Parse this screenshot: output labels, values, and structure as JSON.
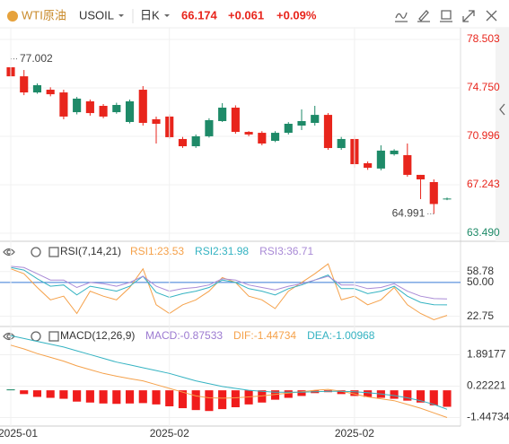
{
  "header": {
    "symbol_name": "WTI原油",
    "symbol_code": "USOIL",
    "period": "日K",
    "price": 66.174,
    "change": "+0.061",
    "change_pct": "+0.09%"
  },
  "chart_data": [
    {
      "type": "candlestick",
      "up_color": "#1e8a68",
      "down_color": "#e8251c",
      "mark_extremes": true,
      "ylim": [
        62.93,
        79.48
      ],
      "yticks": [
        78.503,
        {
          "value": 74.75,
          "label": "74.750"
        },
        70.996,
        67.243,
        {
          "value": 63.49,
          "label": "63.490"
        }
      ],
      "open": [
        76.35,
        75.65,
        74.4,
        74.61,
        74.4,
        72.87,
        73.71,
        73.36,
        72.87,
        72.11,
        74.61,
        72.32,
        72.53,
        70.79,
        70.23,
        71.0,
        72.18,
        73.22,
        71.34,
        71.27,
        70.65,
        71.27,
        71.83,
        72.04,
        72.66,
        70.09,
        70.79,
        68.91,
        68.5,
        69.61,
        69.54,
        68.01,
        67.45,
        66.11
      ],
      "high": [
        77.002,
        76.14,
        75.1,
        74.8,
        74.61,
        74.05,
        73.85,
        73.5,
        73.6,
        73.85,
        74.89,
        72.53,
        72.7,
        70.95,
        71.14,
        72.4,
        73.57,
        73.4,
        71.4,
        71.4,
        71.4,
        72.1,
        73.08,
        73.36,
        72.8,
        70.95,
        71.07,
        69.05,
        70.3,
        70.0,
        70.44,
        68.01,
        67.66,
        66.25
      ],
      "low": [
        75.45,
        74.19,
        74.3,
        74.1,
        72.32,
        72.7,
        72.6,
        72.4,
        72.75,
        72.0,
        71.83,
        70.44,
        70.8,
        70.1,
        70.1,
        70.9,
        72.11,
        71.2,
        71.0,
        70.3,
        70.55,
        71.14,
        71.48,
        71.83,
        69.95,
        69.95,
        68.56,
        68.4,
        68.36,
        69.5,
        67.87,
        66.13,
        64.991,
        66.05
      ],
      "close": [
        75.65,
        74.4,
        74.96,
        74.26,
        72.53,
        73.92,
        72.8,
        72.53,
        73.43,
        73.71,
        72.04,
        71.97,
        70.93,
        70.23,
        71.0,
        72.25,
        73.22,
        71.34,
        71.14,
        70.44,
        71.27,
        71.97,
        72.18,
        72.66,
        70.09,
        70.79,
        68.84,
        68.56,
        69.89,
        69.89,
        68.01,
        67.66,
        65.75,
        66.174
      ]
    },
    {
      "type": "line",
      "title": "RSI(7,14,21)",
      "ylim": [
        16,
        68
      ],
      "yticks": [
        58.78,
        {
          "value": 50,
          "label": "50.00"
        },
        22.75
      ],
      "reference_line": 50,
      "reference_color": "#3b7dd8",
      "series": [
        {
          "name": "RSI1:23.53",
          "color": "#f5a14a",
          "values": [
            61,
            57,
            46,
            36,
            39,
            25,
            43,
            39,
            36,
            46,
            61,
            32,
            25,
            32,
            36,
            43,
            54,
            50,
            39,
            36,
            29,
            43,
            50,
            57,
            65,
            36,
            39,
            32,
            36,
            46,
            32,
            25,
            20,
            23.53
          ]
        },
        {
          "name": "RSI2:31.98",
          "color": "#35b3c2",
          "values": [
            62,
            60,
            53,
            47,
            48,
            40,
            47,
            45,
            43,
            47,
            55,
            42,
            38,
            41,
            43,
            46,
            52,
            50,
            45,
            43,
            40,
            45,
            48,
            52,
            56,
            45,
            45,
            41,
            43,
            47,
            39,
            34,
            32,
            31.98
          ]
        },
        {
          "name": "RSI3:36.71",
          "color": "#a98ad6",
          "values": [
            63,
            62,
            57,
            52,
            52,
            46,
            50,
            49,
            47,
            50,
            55,
            47,
            43,
            45,
            46,
            48,
            53,
            52,
            48,
            46,
            44,
            47,
            49,
            52,
            55,
            48,
            48,
            45,
            46,
            49,
            43,
            39,
            37,
            36.71
          ]
        }
      ]
    },
    {
      "type": "combo",
      "title": "MACD(12,26,9)",
      "ylim": [
        -1.9,
        3.2
      ],
      "yticks": [
        1.89177,
        0.22221,
        -1.44734
      ],
      "up_color": "#1e8a68",
      "down_color": "#f01c1c",
      "categories": [
        "2025-01",
        null,
        null,
        null,
        null,
        null,
        null,
        null,
        null,
        null,
        null,
        null,
        "2025-02",
        null,
        null,
        null,
        null,
        null,
        null,
        null,
        null,
        null,
        null,
        null,
        null,
        null,
        "2025-02",
        null,
        null,
        null,
        null,
        null,
        null,
        null
      ],
      "series": [
        {
          "name": "MACD:-0.87533",
          "kind": "bar",
          "color": "#9c7ad1",
          "values": [
            0.05,
            -0.2,
            -0.35,
            -0.4,
            -0.45,
            -0.6,
            -0.65,
            -0.7,
            -0.72,
            -0.7,
            -0.68,
            -0.75,
            -0.85,
            -0.95,
            -1.05,
            -1.1,
            -1.0,
            -0.9,
            -0.75,
            -0.65,
            -0.5,
            -0.4,
            -0.3,
            -0.15,
            -0.1,
            -0.2,
            -0.3,
            -0.35,
            -0.4,
            -0.45,
            -0.55,
            -0.65,
            -0.8,
            -0.87533
          ]
        },
        {
          "name": "DIF:-1.44734",
          "kind": "line",
          "color": "#f5a14a",
          "values": [
            2.4,
            2.2,
            1.95,
            1.75,
            1.55,
            1.3,
            1.1,
            0.9,
            0.75,
            0.62,
            0.5,
            0.3,
            0.1,
            -0.1,
            -0.3,
            -0.4,
            -0.42,
            -0.4,
            -0.35,
            -0.3,
            -0.22,
            -0.15,
            -0.08,
            0.0,
            0.05,
            -0.05,
            -0.2,
            -0.35,
            -0.45,
            -0.55,
            -0.75,
            -0.95,
            -1.2,
            -1.44734
          ]
        },
        {
          "name": "DEA:-1.00968",
          "kind": "line",
          "color": "#35b3c2",
          "values": [
            2.9,
            2.75,
            2.6,
            2.45,
            2.3,
            2.1,
            1.9,
            1.7,
            1.5,
            1.35,
            1.2,
            1.05,
            0.9,
            0.7,
            0.5,
            0.35,
            0.2,
            0.1,
            0.0,
            -0.05,
            -0.1,
            -0.1,
            -0.1,
            -0.08,
            -0.05,
            -0.05,
            -0.08,
            -0.12,
            -0.2,
            -0.28,
            -0.4,
            -0.55,
            -0.75,
            -1.00968
          ]
        }
      ]
    }
  ]
}
